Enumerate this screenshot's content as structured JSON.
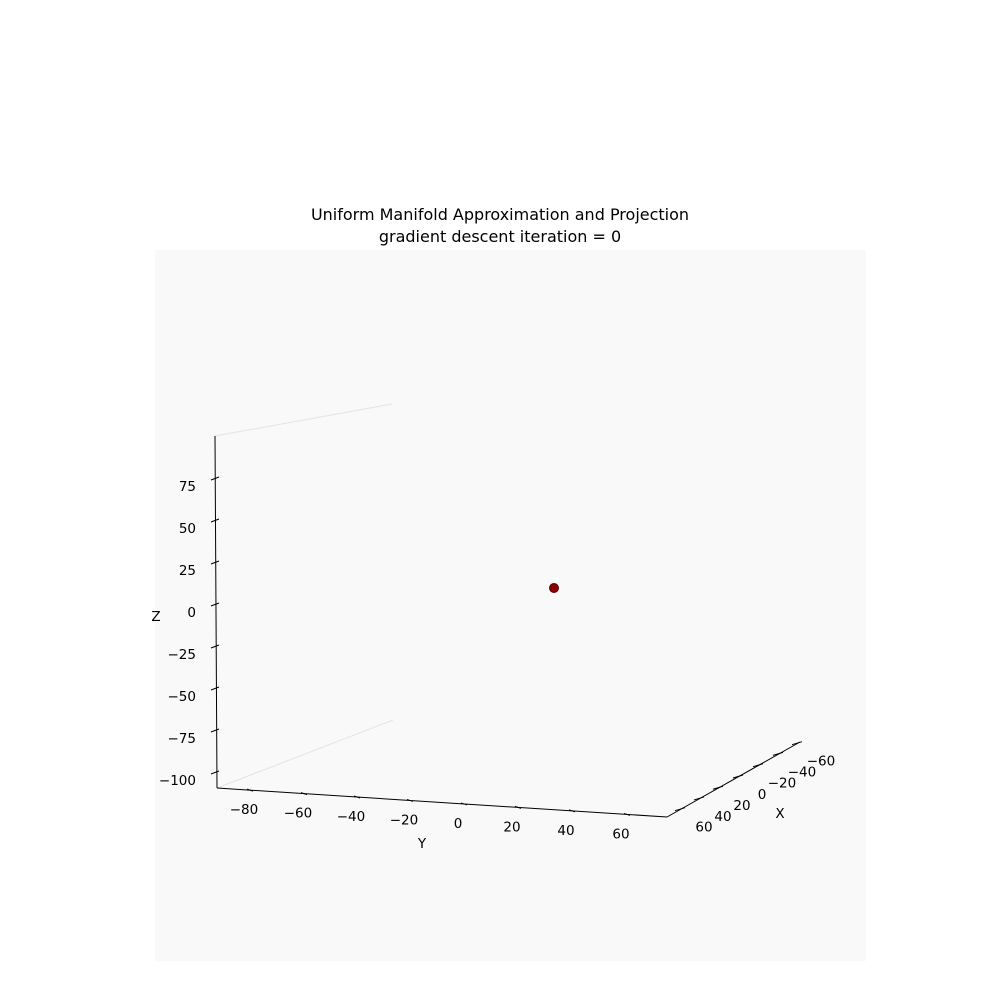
{
  "chart_data": {
    "type": "scatter",
    "title": "Uniform Manifold Approximation and Projection",
    "subtitle": "gradient descent iteration = 0",
    "xlabel": "X",
    "ylabel": "Y",
    "zlabel": "Z",
    "x_ticks": [
      "60",
      "40",
      "20",
      "0",
      "−20",
      "−40",
      "−60"
    ],
    "y_ticks": [
      "−80",
      "−60",
      "−40",
      "−20",
      "0",
      "20",
      "40",
      "60"
    ],
    "z_ticks": [
      "75",
      "50",
      "25",
      "0",
      "−25",
      "−50",
      "−75",
      "−100"
    ],
    "points": [
      {
        "x": 0,
        "y": 0,
        "z": 0,
        "color": "#8b0000"
      }
    ],
    "background_color": "#f9f9f9",
    "grid": false
  }
}
